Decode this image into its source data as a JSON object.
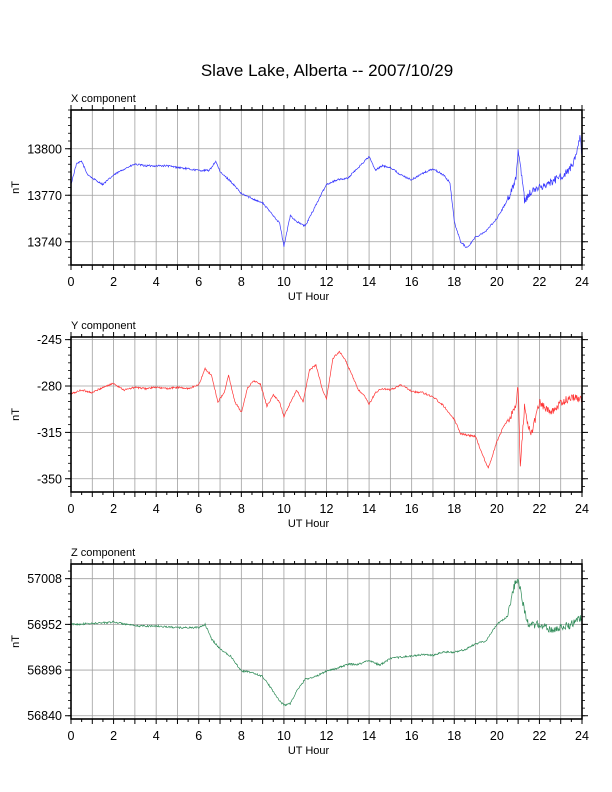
{
  "title": "Slave Lake, Alberta -- 2007/10/29",
  "chart_data": [
    {
      "type": "line",
      "panel_label": "X component",
      "title": "",
      "xlabel": "UT Hour",
      "ylabel": "nT",
      "xlim": [
        0,
        24
      ],
      "ylim": [
        13725,
        13825
      ],
      "x_ticks": [
        "0",
        "2",
        "4",
        "6",
        "8",
        "10",
        "12",
        "14",
        "16",
        "18",
        "20",
        "22",
        "24"
      ],
      "y_ticks": [
        13740,
        13770,
        13800
      ],
      "grid": true,
      "color": "#3333ff",
      "series": [
        {
          "x": [
            0,
            0.25,
            0.5,
            0.75,
            1,
            1.5,
            2,
            2.5,
            3,
            3.5,
            4,
            4.5,
            5,
            5.5,
            6,
            6.5,
            6.8,
            7,
            7.5,
            8,
            8.5,
            9,
            9.5,
            9.8,
            10,
            10.3,
            10.6,
            11,
            11.4,
            12,
            12.5,
            13,
            13.5,
            14,
            14.3,
            14.6,
            15,
            15.5,
            16,
            16.5,
            17,
            17.5,
            17.8,
            18,
            18.3,
            18.6,
            19,
            19.5,
            20,
            20.3,
            20.6,
            20.9,
            21,
            21.3,
            21.6,
            22,
            22.5,
            23,
            23.3,
            23.6,
            23.9,
            24
          ],
          "y": [
            13777,
            13790,
            13792,
            13784,
            13781,
            13777,
            13783,
            13787,
            13790,
            13789,
            13789,
            13789,
            13788,
            13787,
            13786,
            13786,
            13792,
            13785,
            13779,
            13771,
            13768,
            13765,
            13757,
            13752,
            13737,
            13757,
            13753,
            13750,
            13761,
            13777,
            13780,
            13781,
            13788,
            13795,
            13786,
            13789,
            13788,
            13783,
            13780,
            13784,
            13787,
            13783,
            13778,
            13753,
            13740,
            13736,
            13743,
            13747,
            13755,
            13762,
            13770,
            13781,
            13800,
            13767,
            13772,
            13775,
            13778,
            13782,
            13785,
            13790,
            13808,
            13795
          ]
        }
      ]
    },
    {
      "type": "line",
      "panel_label": "Y component",
      "title": "",
      "xlabel": "UT Hour",
      "ylabel": "nT",
      "xlim": [
        0,
        24
      ],
      "ylim": [
        -360,
        -243
      ],
      "x_ticks": [
        "0",
        "2",
        "4",
        "6",
        "8",
        "10",
        "12",
        "14",
        "16",
        "18",
        "20",
        "22",
        "24"
      ],
      "y_ticks": [
        -245,
        -280,
        -315,
        -350
      ],
      "grid": true,
      "color": "#ff3333",
      "series": [
        {
          "x": [
            0,
            0.5,
            1,
            1.5,
            2,
            2.5,
            3,
            3.5,
            4,
            4.5,
            5,
            5.5,
            6,
            6.3,
            6.6,
            6.9,
            7.2,
            7.4,
            7.7,
            8,
            8.3,
            8.6,
            8.9,
            9.2,
            9.5,
            9.8,
            10,
            10.3,
            10.6,
            10.9,
            11.2,
            11.5,
            11.8,
            12,
            12.3,
            12.6,
            12.9,
            13.2,
            13.5,
            13.8,
            14,
            14.3,
            14.6,
            15,
            15.5,
            16,
            16.5,
            17,
            17.5,
            18,
            18.3,
            18.6,
            19,
            19.3,
            19.6,
            20,
            20.3,
            20.6,
            20.9,
            21,
            21.1,
            21.3,
            21.6,
            22,
            22.5,
            23,
            23.5,
            24
          ],
          "y": [
            -286,
            -283,
            -285,
            -281,
            -278,
            -283,
            -281,
            -282,
            -281,
            -282,
            -281,
            -282,
            -279,
            -267,
            -272,
            -292,
            -285,
            -272,
            -292,
            -300,
            -281,
            -276,
            -279,
            -295,
            -287,
            -292,
            -303,
            -293,
            -283,
            -292,
            -268,
            -264,
            -282,
            -290,
            -259,
            -254,
            -261,
            -272,
            -283,
            -288,
            -294,
            -285,
            -282,
            -283,
            -279,
            -284,
            -285,
            -288,
            -295,
            -305,
            -316,
            -317,
            -318,
            -331,
            -342,
            -322,
            -311,
            -304,
            -295,
            -279,
            -339,
            -296,
            -318,
            -292,
            -300,
            -293,
            -288,
            -290
          ]
        }
      ]
    },
    {
      "type": "line",
      "panel_label": "Z component",
      "title": "",
      "xlabel": "UT Hour",
      "ylabel": "nT",
      "xlim": [
        0,
        24
      ],
      "ylim": [
        56836,
        57026
      ],
      "x_ticks": [
        "0",
        "2",
        "4",
        "6",
        "8",
        "10",
        "12",
        "14",
        "16",
        "18",
        "20",
        "22",
        "24"
      ],
      "y_ticks": [
        56840,
        56896,
        56952,
        57008
      ],
      "grid": true,
      "color": "#2e8b57",
      "series": [
        {
          "x": [
            0,
            1,
            2,
            3,
            4,
            5,
            6,
            6.3,
            6.6,
            7,
            7.5,
            8,
            8.5,
            9,
            9.5,
            9.8,
            10,
            10.3,
            10.6,
            11,
            11.5,
            12,
            12.5,
            13,
            13.5,
            14,
            14.5,
            15,
            15.5,
            16,
            16.5,
            17,
            17.5,
            18,
            18.5,
            19,
            19.5,
            20,
            20.5,
            20.8,
            21,
            21.2,
            21.5,
            22,
            22.5,
            23,
            23.5,
            24
          ],
          "y": [
            56952,
            56953,
            56955,
            56950,
            56950,
            56948,
            56948,
            56952,
            56934,
            56922,
            56913,
            56895,
            56893,
            56888,
            56870,
            56858,
            56853,
            56855,
            56870,
            56885,
            56888,
            56895,
            56898,
            56903,
            56903,
            56908,
            56902,
            56910,
            56912,
            56913,
            56915,
            56914,
            56918,
            56918,
            56921,
            56928,
            56932,
            56952,
            56962,
            56998,
            57010,
            56980,
            56950,
            56952,
            56945,
            56948,
            56952,
            56960
          ]
        }
      ]
    }
  ]
}
